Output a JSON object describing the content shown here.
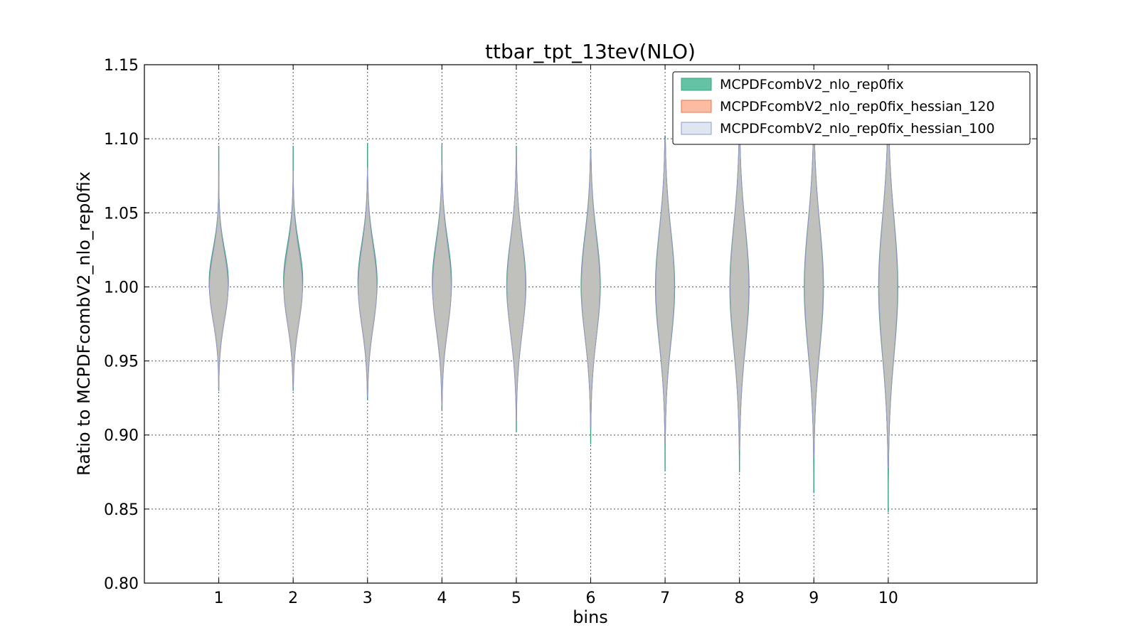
{
  "chart_data": {
    "type": "violin",
    "title": "ttbar_tpt_13tev(NLO)",
    "xlabel": "bins",
    "ylabel": "Ratio to MCPDFcombV2_nlo_rep0fix",
    "xlim": [
      0,
      12
    ],
    "ylim": [
      0.8,
      1.15
    ],
    "yticks": [
      0.8,
      0.85,
      0.9,
      0.95,
      1.0,
      1.05,
      1.1,
      1.15
    ],
    "ytick_labels": [
      "0.80",
      "0.85",
      "0.90",
      "0.95",
      "1.00",
      "1.05",
      "1.10",
      "1.15"
    ],
    "categories": [
      "1",
      "2",
      "3",
      "4",
      "5",
      "6",
      "7",
      "8",
      "9",
      "10"
    ],
    "grid": true,
    "legend_position": "top-right",
    "series": [
      {
        "name": "MCPDFcombV2_nlo_rep0fix",
        "color": "#66c2a5",
        "edge": "#3aa384",
        "opacity": 0.95,
        "bins": [
          {
            "x": 1,
            "min": 0.93,
            "max": 1.095,
            "center": 1.003,
            "spread": 0.022,
            "width": 0.26
          },
          {
            "x": 2,
            "min": 0.93,
            "max": 1.095,
            "center": 1.004,
            "spread": 0.024,
            "width": 0.26
          },
          {
            "x": 3,
            "min": 0.924,
            "max": 1.097,
            "center": 1.003,
            "spread": 0.026,
            "width": 0.26
          },
          {
            "x": 4,
            "min": 0.917,
            "max": 1.096,
            "center": 1.003,
            "spread": 0.028,
            "width": 0.26
          },
          {
            "x": 5,
            "min": 0.902,
            "max": 1.095,
            "center": 1.001,
            "spread": 0.031,
            "width": 0.26
          },
          {
            "x": 6,
            "min": 0.894,
            "max": 1.093,
            "center": 1.001,
            "spread": 0.034,
            "width": 0.26
          },
          {
            "x": 7,
            "min": 0.876,
            "max": 1.102,
            "center": 1.0,
            "spread": 0.038,
            "width": 0.26
          },
          {
            "x": 8,
            "min": 0.875,
            "max": 1.11,
            "center": 1.0,
            "spread": 0.041,
            "width": 0.26
          },
          {
            "x": 9,
            "min": 0.861,
            "max": 1.107,
            "center": 1.0,
            "spread": 0.043,
            "width": 0.26
          },
          {
            "x": 10,
            "min": 0.848,
            "max": 1.114,
            "center": 1.0,
            "spread": 0.046,
            "width": 0.26
          }
        ]
      },
      {
        "name": "MCPDFcombV2_nlo_rep0fix_hessian_120",
        "color": "#fc8d62",
        "edge": "#e8744a",
        "opacity": 0.5,
        "bins": [
          {
            "x": 1,
            "min": 0.932,
            "max": 1.078,
            "center": 1.0,
            "spread": 0.023,
            "width": 0.25
          },
          {
            "x": 2,
            "min": 0.932,
            "max": 1.078,
            "center": 1.0,
            "spread": 0.025,
            "width": 0.25
          },
          {
            "x": 3,
            "min": 0.926,
            "max": 1.08,
            "center": 1.0,
            "spread": 0.027,
            "width": 0.25
          },
          {
            "x": 4,
            "min": 0.92,
            "max": 1.082,
            "center": 1.0,
            "spread": 0.029,
            "width": 0.25
          },
          {
            "x": 5,
            "min": 0.91,
            "max": 1.09,
            "center": 1.0,
            "spread": 0.032,
            "width": 0.25
          },
          {
            "x": 6,
            "min": 0.905,
            "max": 1.092,
            "center": 1.0,
            "spread": 0.034,
            "width": 0.25
          },
          {
            "x": 7,
            "min": 0.895,
            "max": 1.1,
            "center": 1.0,
            "spread": 0.038,
            "width": 0.25
          },
          {
            "x": 8,
            "min": 0.89,
            "max": 1.108,
            "center": 1.0,
            "spread": 0.041,
            "width": 0.25
          },
          {
            "x": 9,
            "min": 0.885,
            "max": 1.106,
            "center": 1.0,
            "spread": 0.043,
            "width": 0.25
          },
          {
            "x": 10,
            "min": 0.878,
            "max": 1.112,
            "center": 1.0,
            "spread": 0.046,
            "width": 0.25
          }
        ]
      },
      {
        "name": "MCPDFcombV2_nlo_rep0fix_hessian_100",
        "color": "#c9d5ea",
        "edge": "#8d9cc8",
        "opacity": 0.55,
        "bins": [
          {
            "x": 1,
            "min": 0.932,
            "max": 1.078,
            "center": 1.0,
            "spread": 0.023,
            "width": 0.25
          },
          {
            "x": 2,
            "min": 0.932,
            "max": 1.078,
            "center": 1.0,
            "spread": 0.025,
            "width": 0.25
          },
          {
            "x": 3,
            "min": 0.926,
            "max": 1.08,
            "center": 1.0,
            "spread": 0.027,
            "width": 0.25
          },
          {
            "x": 4,
            "min": 0.92,
            "max": 1.082,
            "center": 1.0,
            "spread": 0.029,
            "width": 0.25
          },
          {
            "x": 5,
            "min": 0.91,
            "max": 1.09,
            "center": 1.0,
            "spread": 0.032,
            "width": 0.25
          },
          {
            "x": 6,
            "min": 0.905,
            "max": 1.092,
            "center": 1.0,
            "spread": 0.034,
            "width": 0.25
          },
          {
            "x": 7,
            "min": 0.895,
            "max": 1.1,
            "center": 1.0,
            "spread": 0.038,
            "width": 0.25
          },
          {
            "x": 8,
            "min": 0.89,
            "max": 1.108,
            "center": 1.0,
            "spread": 0.041,
            "width": 0.25
          },
          {
            "x": 9,
            "min": 0.885,
            "max": 1.106,
            "center": 1.0,
            "spread": 0.043,
            "width": 0.25
          },
          {
            "x": 10,
            "min": 0.878,
            "max": 1.112,
            "center": 1.0,
            "spread": 0.046,
            "width": 0.25
          }
        ]
      }
    ]
  }
}
